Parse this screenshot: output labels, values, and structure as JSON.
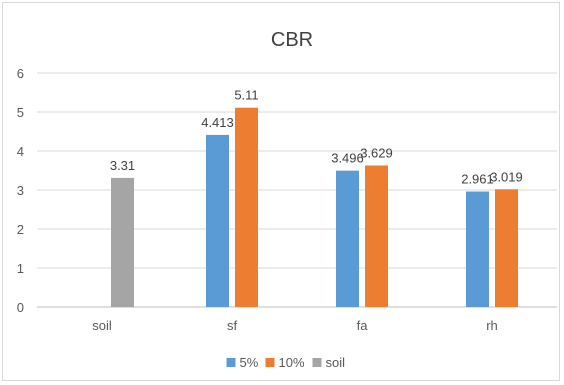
{
  "chart_data": {
    "type": "bar",
    "title": "CBR",
    "categories": [
      "soil",
      "sf",
      "fa",
      "rh"
    ],
    "series": [
      {
        "name": "5%",
        "color": "#5B9BD5",
        "values": [
          null,
          4.413,
          3.496,
          2.961
        ]
      },
      {
        "name": "10%",
        "color": "#ED7D31",
        "values": [
          null,
          5.11,
          3.629,
          3.019
        ]
      },
      {
        "name": "soil",
        "color": "#A5A5A5",
        "values": [
          3.31,
          null,
          null,
          null
        ]
      }
    ],
    "data_labels": [
      [
        null,
        "4.413",
        "3.496",
        "2.961"
      ],
      [
        null,
        "5.11",
        "3.629",
        "3.019"
      ],
      [
        "3.31",
        null,
        null,
        null
      ]
    ],
    "ylim": [
      0,
      6
    ],
    "yticks": [
      "0",
      "1",
      "2",
      "3",
      "4",
      "5",
      "6"
    ],
    "grid": true,
    "legend_position": "bottom"
  }
}
